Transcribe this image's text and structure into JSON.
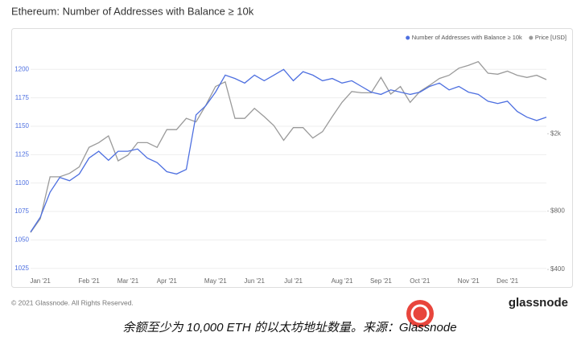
{
  "title": "Ethereum: Number of Addresses with Balance ≥ 10k",
  "chart_data": {
    "type": "line",
    "categories": [
      null,
      "Jan '21",
      null,
      null,
      null,
      null,
      "Feb '21",
      null,
      null,
      null,
      "Mar '21",
      null,
      null,
      null,
      "Apr '21",
      null,
      null,
      null,
      null,
      "May '21",
      null,
      null,
      null,
      "Jun '21",
      null,
      null,
      null,
      "Jul '21",
      null,
      null,
      null,
      null,
      "Aug '21",
      null,
      null,
      null,
      "Sep '21",
      null,
      null,
      null,
      "Oct '21",
      null,
      null,
      null,
      null,
      "Nov '21",
      null,
      null,
      null,
      "Dec '21",
      null,
      null,
      null,
      null
    ],
    "series": [
      {
        "name": "Number of Addresses with Balance ≥ 10k",
        "color": "#4d6fe0",
        "axis": "y",
        "values": [
          1057,
          1070,
          1092,
          1105,
          1102,
          1108,
          1122,
          1128,
          1120,
          1128,
          1128,
          1130,
          1122,
          1118,
          1110,
          1108,
          1112,
          1160,
          1168,
          1180,
          1195,
          1192,
          1188,
          1195,
          1190,
          1195,
          1200,
          1190,
          1198,
          1195,
          1190,
          1192,
          1188,
          1190,
          1185,
          1180,
          1178,
          1182,
          1180,
          1178,
          1180,
          1185,
          1188,
          1182,
          1185,
          1180,
          1178,
          1172,
          1170,
          1172,
          1163,
          1158,
          1155,
          1158
        ]
      },
      {
        "name": "Price [USD]",
        "color": "#9a9a9a",
        "axis": "y2",
        "values": [
          620,
          730,
          1200,
          1200,
          1250,
          1350,
          1700,
          1800,
          1950,
          1450,
          1550,
          1800,
          1800,
          1700,
          2100,
          2100,
          2400,
          2300,
          2800,
          3500,
          3700,
          2400,
          2400,
          2700,
          2450,
          2200,
          1850,
          2150,
          2150,
          1900,
          2050,
          2450,
          2900,
          3300,
          3250,
          3250,
          3900,
          3200,
          3500,
          2900,
          3300,
          3550,
          3850,
          4000,
          4350,
          4500,
          4700,
          4100,
          4050,
          4200,
          4000,
          3900,
          4000,
          3800
        ]
      }
    ],
    "ylim": [
      1017,
      1208
    ],
    "yticks": [
      1025,
      1050,
      1075,
      1100,
      1125,
      1150,
      1175,
      1200
    ],
    "y2lim": [
      364,
      4776
    ],
    "y2log": true,
    "y2ticks": [
      {
        "value": 400,
        "label": "$400"
      },
      {
        "value": 800,
        "label": "$800"
      },
      {
        "value": 2000,
        "label": "$2k"
      }
    ],
    "grid": true,
    "legend": "top-right"
  },
  "footer": {
    "copyright": "© 2021 Glassnode. All Rights Reserved.",
    "logo": "glassnode"
  },
  "caption": "余额至少为 10,000 ETH 的以太坊地址数量。来源：Glassnode"
}
